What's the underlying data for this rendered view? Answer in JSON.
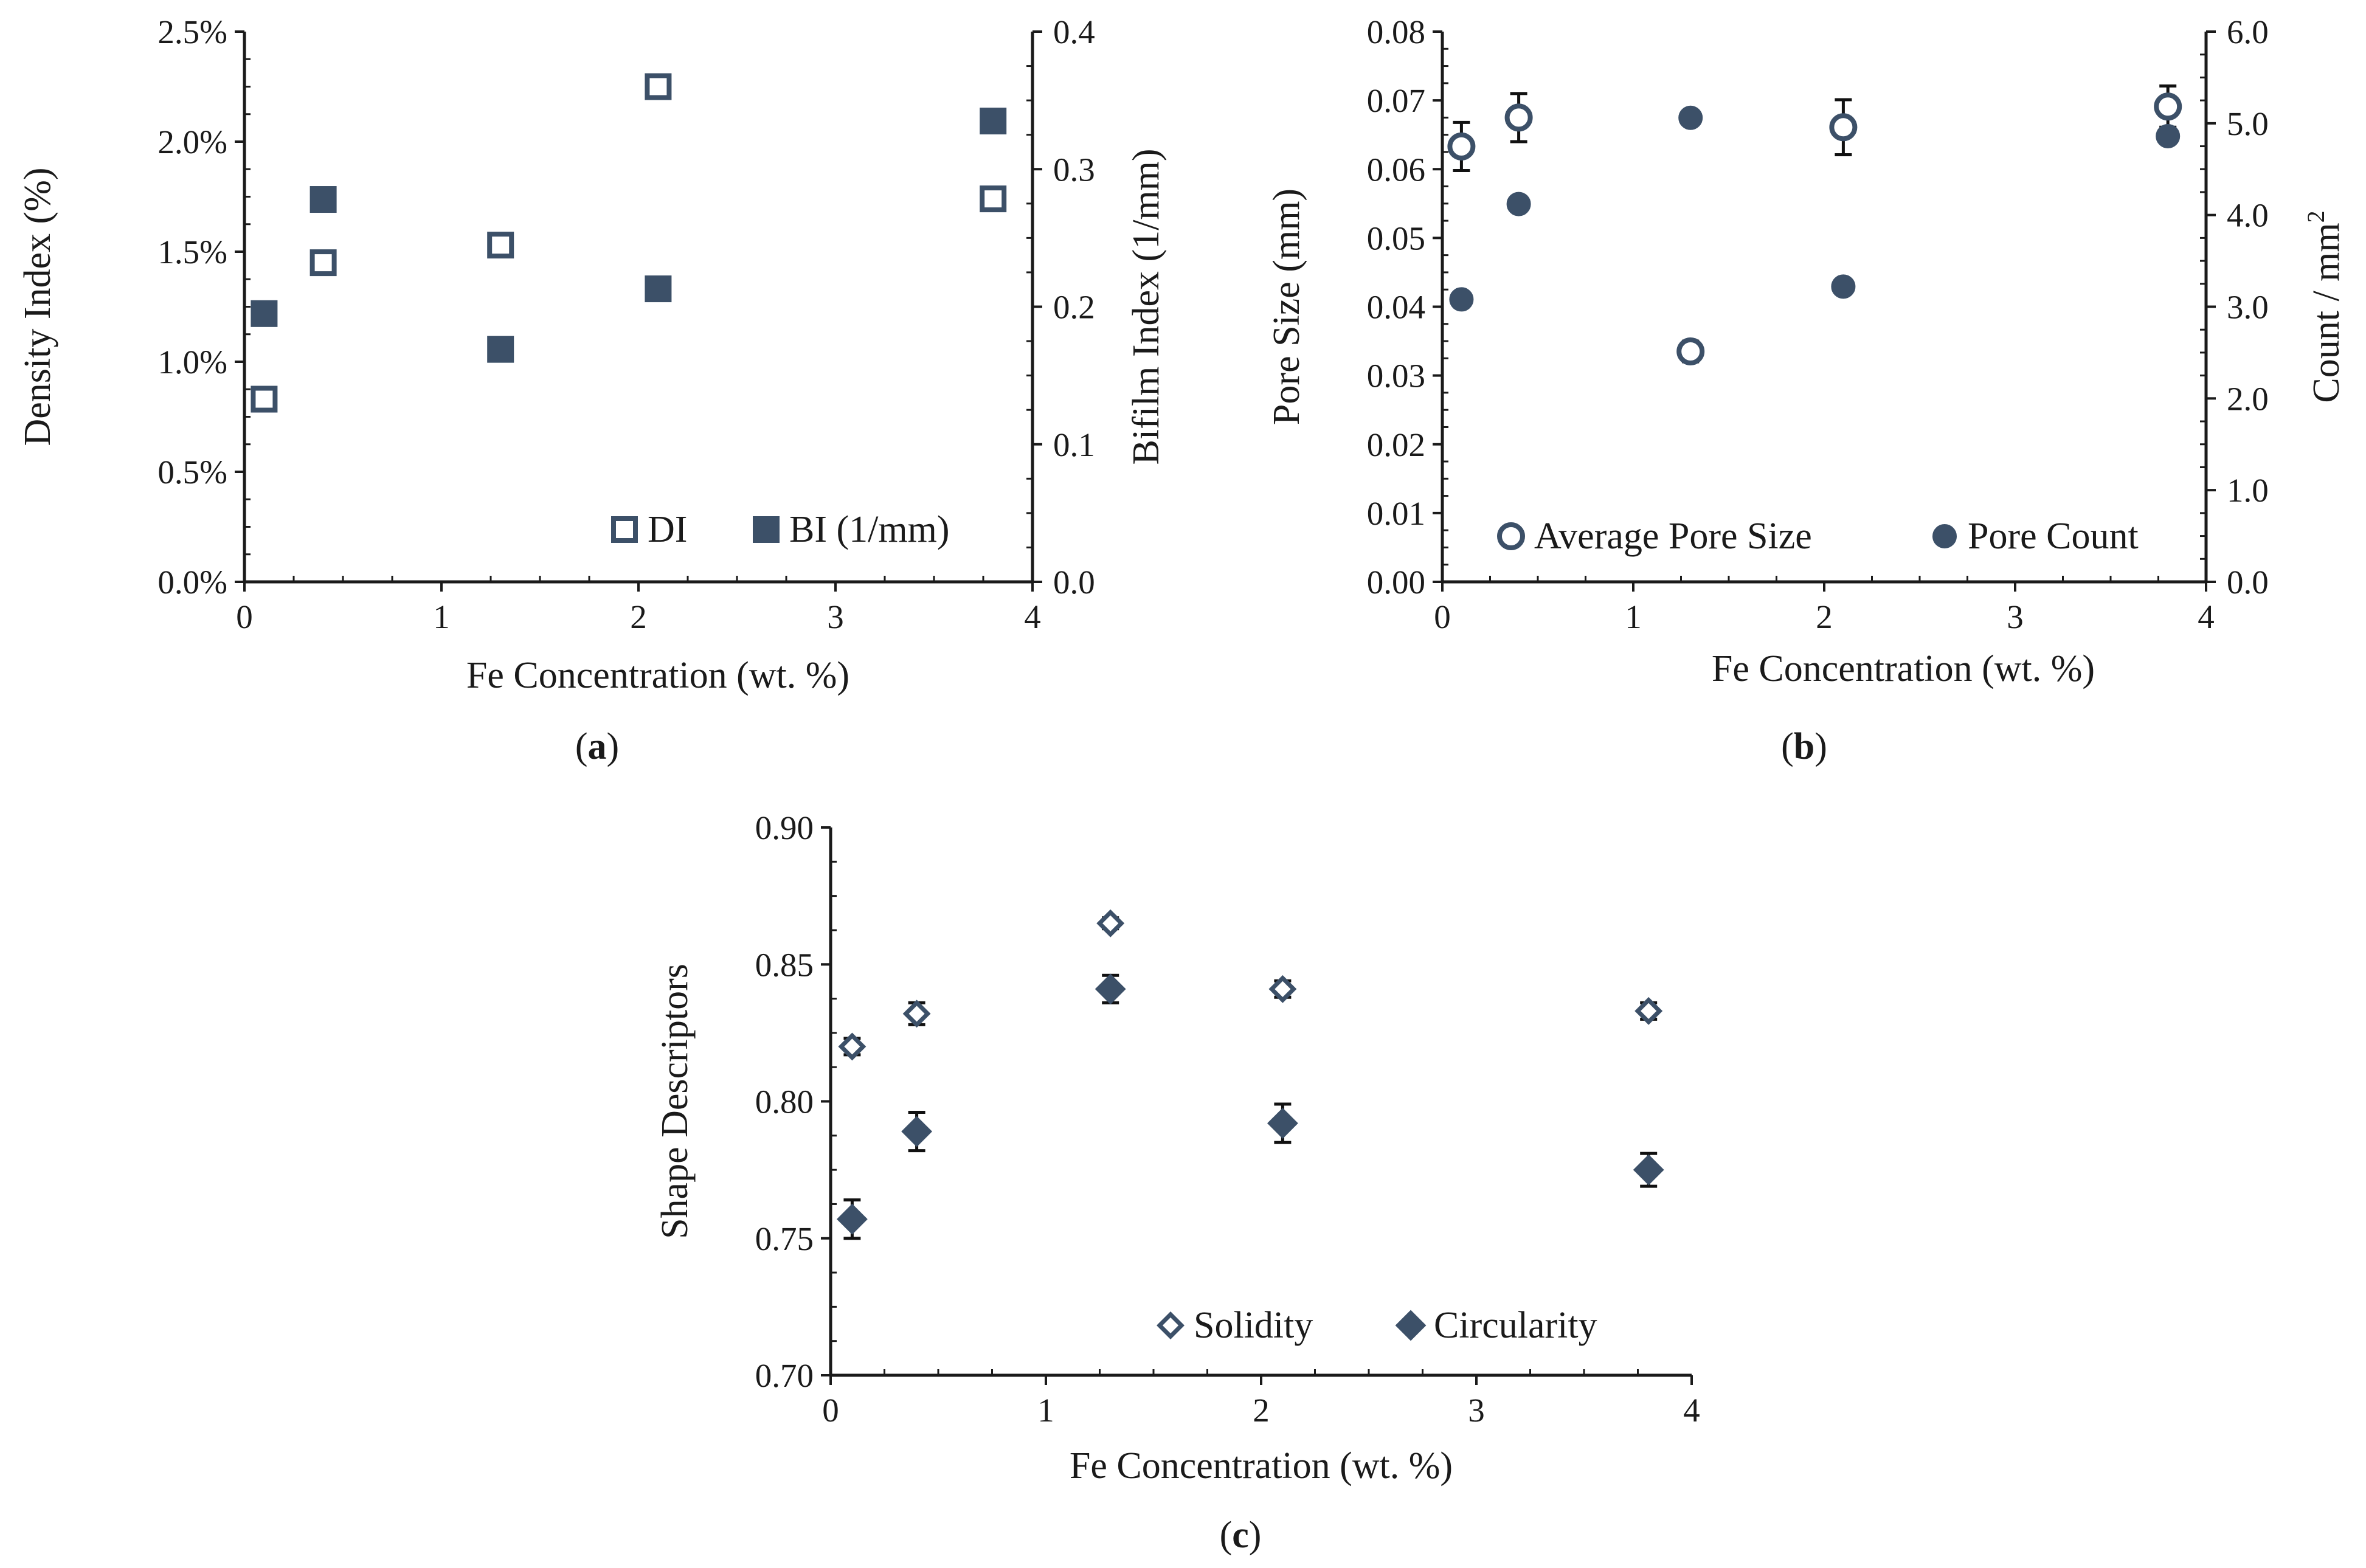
{
  "chart_data": [
    {
      "type": "scatter",
      "panel": "a",
      "caption_letter": "a",
      "xlabel": "Fe Concentration (wt. %)",
      "x_ticks": [
        "0",
        "1",
        "2",
        "3",
        "4"
      ],
      "xlim": [
        0,
        4
      ],
      "ylabel": "Density Index (%)",
      "ylim": [
        0,
        0.025
      ],
      "y_ticks": [
        "0.0%",
        "0.5%",
        "1.0%",
        "1.5%",
        "2.0%",
        "2.5%"
      ],
      "y2label": "Bifilm Index (1/mm)",
      "y2lim": [
        0,
        0.4
      ],
      "y2_ticks": [
        "0.0",
        "0.1",
        "0.2",
        "0.3",
        "0.4"
      ],
      "legend_position": "bottom-right",
      "series": [
        {
          "name": "DI",
          "axis": "left",
          "marker": "square-open",
          "x": [
            0.1,
            0.4,
            1.3,
            2.1,
            3.8
          ],
          "y": [
            0.0083,
            0.0145,
            0.0153,
            0.0225,
            0.0174
          ]
        },
        {
          "name": "BI (1/mm)",
          "axis": "right",
          "marker": "square-filled",
          "x": [
            0.1,
            0.4,
            1.3,
            2.1,
            3.8
          ],
          "y": [
            0.195,
            0.278,
            0.169,
            0.213,
            0.335
          ]
        }
      ]
    },
    {
      "type": "scatter",
      "panel": "b",
      "caption_letter": "b",
      "xlabel": "Fe Concentration (wt. %)",
      "x_ticks": [
        "0",
        "1",
        "2",
        "3",
        "4"
      ],
      "xlim": [
        0,
        4
      ],
      "ylabel": "Pore Size (mm)",
      "ylim": [
        0,
        0.08
      ],
      "y_ticks": [
        "0.00",
        "0.01",
        "0.02",
        "0.03",
        "0.04",
        "0.05",
        "0.06",
        "0.07",
        "0.08"
      ],
      "y2label_main": "Count / mm",
      "y2label_sup": "2",
      "y2lim": [
        0,
        6
      ],
      "y2_ticks": [
        "0.0",
        "1.0",
        "2.0",
        "3.0",
        "4.0",
        "5.0",
        "6.0"
      ],
      "legend_position": "bottom",
      "series": [
        {
          "name": "Average Pore Size",
          "axis": "left",
          "marker": "circle-open",
          "x": [
            0.1,
            0.4,
            1.3,
            2.1,
            3.8
          ],
          "y": [
            0.0633,
            0.0675,
            0.0335,
            0.0661,
            0.0691
          ],
          "err": [
            0.0035,
            0.0035,
            0.0015,
            0.004,
            0.003
          ]
        },
        {
          "name": "Pore Count",
          "axis": "right",
          "marker": "circle-filled",
          "x": [
            0.1,
            0.4,
            1.3,
            2.1,
            3.8
          ],
          "y": [
            3.08,
            4.12,
            5.06,
            3.22,
            4.86
          ]
        }
      ]
    },
    {
      "type": "scatter",
      "panel": "c",
      "caption_letter": "c",
      "xlabel": "Fe Concentration (wt. %)",
      "x_ticks": [
        "0",
        "1",
        "2",
        "3",
        "4"
      ],
      "xlim": [
        0,
        4
      ],
      "ylabel": "Shape Descriptors",
      "ylim": [
        0.7,
        0.9
      ],
      "y_ticks": [
        "0.70",
        "0.75",
        "0.80",
        "0.85",
        "0.90"
      ],
      "legend_position": "bottom-right",
      "series": [
        {
          "name": "Solidity",
          "axis": "left",
          "marker": "diamond-open",
          "x": [
            0.1,
            0.4,
            1.3,
            2.1,
            3.8
          ],
          "y": [
            0.82,
            0.832,
            0.865,
            0.841,
            0.833
          ],
          "err": [
            0.003,
            0.004,
            0.002,
            0.003,
            0.003
          ]
        },
        {
          "name": "Circularity",
          "axis": "left",
          "marker": "diamond-filled",
          "x": [
            0.1,
            0.4,
            1.3,
            2.1,
            3.8
          ],
          "y": [
            0.757,
            0.789,
            0.841,
            0.792,
            0.775
          ],
          "err": [
            0.007,
            0.007,
            0.005,
            0.007,
            0.006
          ]
        }
      ]
    }
  ],
  "colors": {
    "marker": "#3c5068",
    "axis": "#1a1a1a",
    "text": "#1a1a1a"
  }
}
